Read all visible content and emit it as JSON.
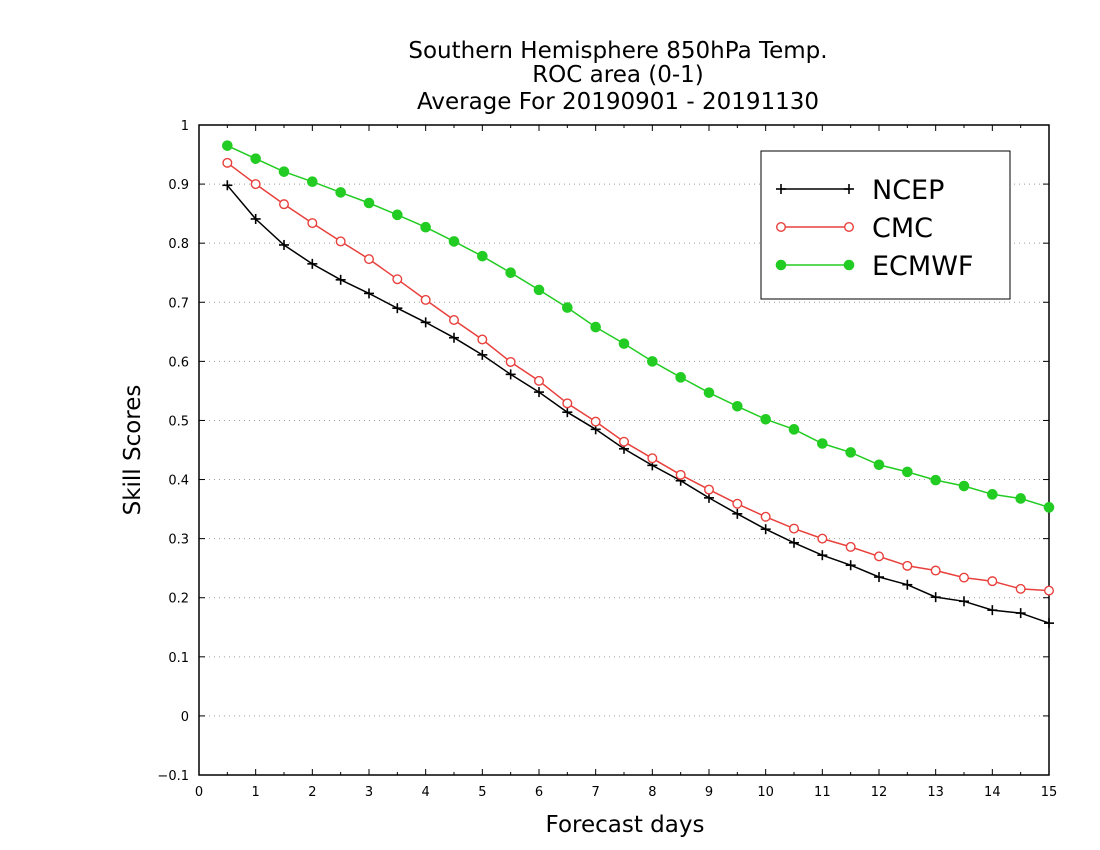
{
  "chart_data": {
    "type": "line",
    "title": [
      "Southern Hemisphere 850hPa Temp.",
      "ROC area (0-1)",
      "Average For 20190901 - 20191130"
    ],
    "xlabel": "Forecast days",
    "ylabel": "Skill Scores",
    "xlim": [
      0,
      15
    ],
    "ylim": [
      -0.1,
      1
    ],
    "xticks": [
      0,
      1,
      2,
      3,
      4,
      5,
      6,
      7,
      8,
      9,
      10,
      11,
      12,
      13,
      14,
      15
    ],
    "yticks": [
      -0.1,
      0,
      0.1,
      0.2,
      0.3,
      0.4,
      0.5,
      0.6,
      0.7,
      0.8,
      0.9,
      1
    ],
    "grid": "horizontal dotted",
    "legend_position": "top-right",
    "x": [
      0.5,
      1,
      1.5,
      2,
      2.5,
      3,
      3.5,
      4,
      4.5,
      5,
      5.5,
      6,
      6.5,
      7,
      7.5,
      8,
      8.5,
      9,
      9.5,
      10,
      10.5,
      11,
      11.5,
      12,
      12.5,
      13,
      13.5,
      14,
      14.5,
      15
    ],
    "series": [
      {
        "name": "NCEP",
        "color": "#000000",
        "marker": "plus",
        "values": [
          0.898,
          0.841,
          0.797,
          0.765,
          0.738,
          0.715,
          0.69,
          0.666,
          0.64,
          0.611,
          0.578,
          0.548,
          0.514,
          0.485,
          0.452,
          0.424,
          0.398,
          0.369,
          0.342,
          0.316,
          0.293,
          0.272,
          0.255,
          0.235,
          0.222,
          0.201,
          0.194,
          0.179,
          0.174,
          0.157
        ]
      },
      {
        "name": "CMC",
        "color": "#e8403c",
        "marker": "open-circle",
        "values": [
          0.936,
          0.9,
          0.866,
          0.834,
          0.803,
          0.773,
          0.739,
          0.704,
          0.67,
          0.637,
          0.599,
          0.567,
          0.529,
          0.498,
          0.464,
          0.436,
          0.408,
          0.383,
          0.359,
          0.337,
          0.317,
          0.3,
          0.286,
          0.27,
          0.254,
          0.246,
          0.234,
          0.228,
          0.215,
          0.212
        ]
      },
      {
        "name": "ECMWF",
        "color": "#22cc22",
        "marker": "filled-circle",
        "values": [
          0.965,
          0.943,
          0.921,
          0.904,
          0.886,
          0.868,
          0.848,
          0.827,
          0.803,
          0.778,
          0.75,
          0.721,
          0.691,
          0.658,
          0.63,
          0.6,
          0.573,
          0.547,
          0.524,
          0.502,
          0.485,
          0.461,
          0.446,
          0.425,
          0.413,
          0.399,
          0.389,
          0.375,
          0.368,
          0.353
        ]
      }
    ]
  }
}
